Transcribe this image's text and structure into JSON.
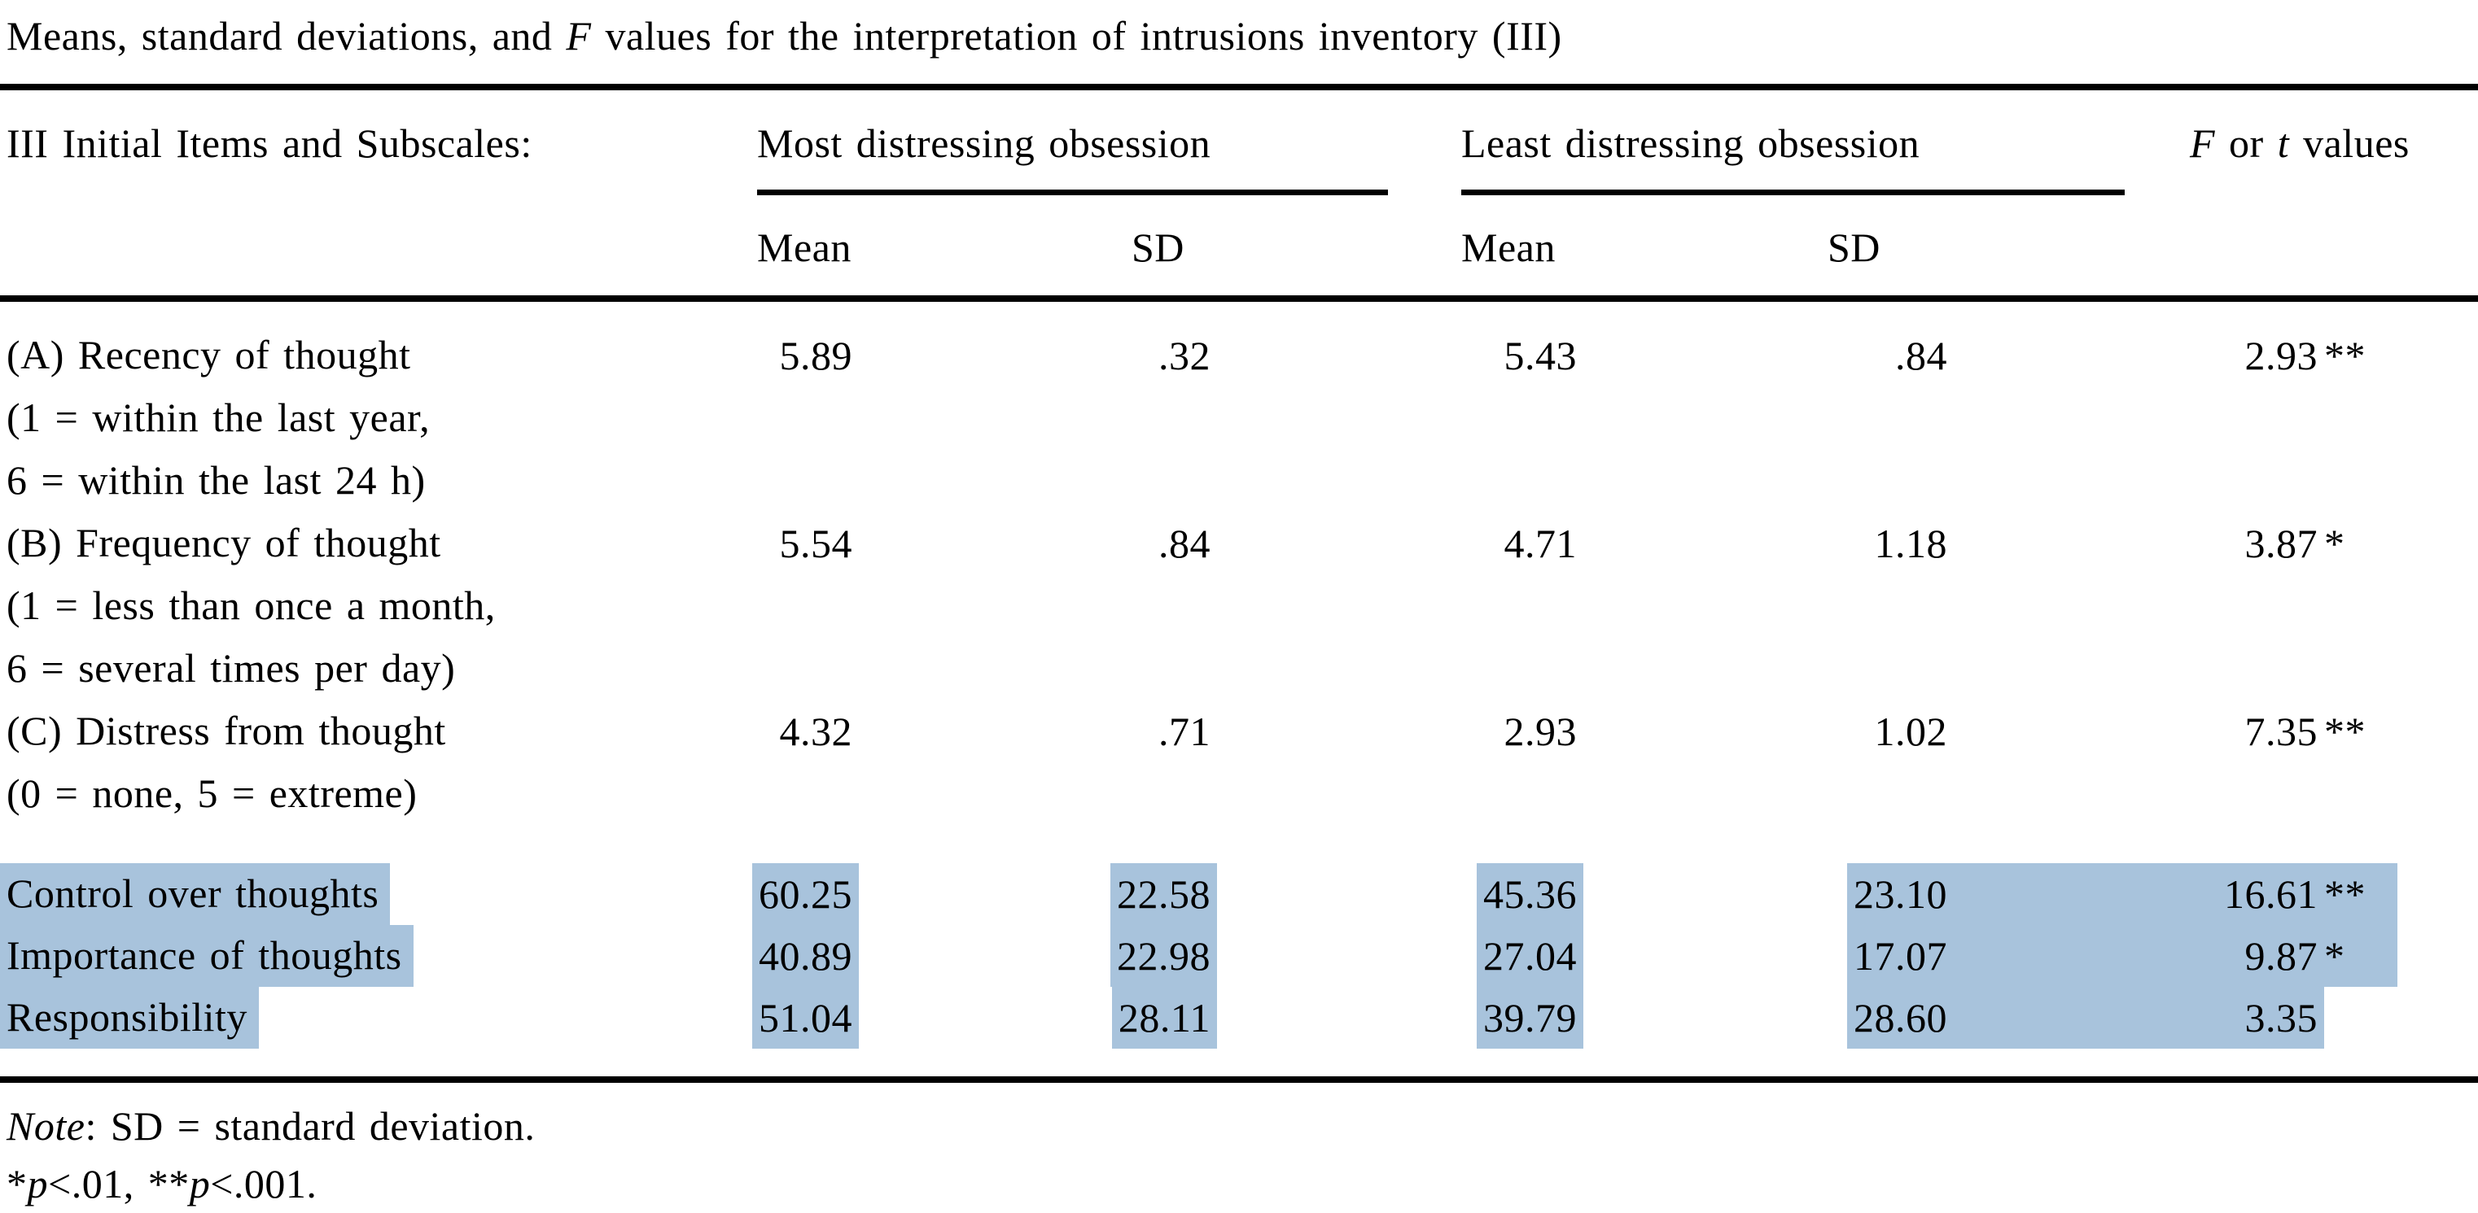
{
  "selection_highlight_color": "#a8c3dc",
  "title": {
    "part1": "Means, standard deviations, and ",
    "italic_f": "F",
    "part2": " values for the interpretation of intrusions inventory (III)"
  },
  "header": {
    "stub": "III Initial Items and Subscales:",
    "group1": "Most distressing obsession",
    "group2": "Least distressing obsession",
    "fcol": {
      "f": "F",
      "or": " or ",
      "t": "t",
      "values": " values"
    },
    "sub_mean1": "Mean",
    "sub_sd1": "SD",
    "sub_mean2": "Mean",
    "sub_sd2": "SD"
  },
  "table": {
    "rows": [
      {
        "label_lines": [
          "(A) Recency of thought",
          "(1 = within the last year,",
          "6 = within the last 24 h)"
        ],
        "mean1": "5.89",
        "sd1": ".32",
        "mean2": "5.43",
        "sd2": ".84",
        "f": "2.93",
        "stars": "**",
        "highlighted": false
      },
      {
        "label_lines": [
          "(B) Frequency of thought",
          "(1 = less than once a month,",
          "6 = several times per day)"
        ],
        "mean1": "5.54",
        "sd1": ".84",
        "mean2": "4.71",
        "sd2": "1.18",
        "f": "3.87",
        "stars": "*",
        "highlighted": false
      },
      {
        "label_lines": [
          "(C) Distress from thought",
          "(0 = none, 5 = extreme)"
        ],
        "mean1": "4.32",
        "sd1": ".71",
        "mean2": "2.93",
        "sd2": "1.02",
        "f": "7.35",
        "stars": "**",
        "highlighted": false
      },
      {
        "label_lines": [
          "Control over thoughts"
        ],
        "mean1": "60.25",
        "sd1": "22.58",
        "mean2": "45.36",
        "sd2": "23.10",
        "f": "16.61",
        "stars": "**",
        "highlighted": true
      },
      {
        "label_lines": [
          "Importance of thoughts"
        ],
        "mean1": "40.89",
        "sd1": "22.98",
        "mean2": "27.04",
        "sd2": "17.07",
        "f": "9.87",
        "stars": "*",
        "highlighted": true
      },
      {
        "label_lines": [
          "Responsibility"
        ],
        "mean1": "51.04",
        "sd1": "28.11",
        "mean2": "39.79",
        "sd2": "28.60",
        "f": "3.35",
        "stars": "",
        "highlighted": true
      }
    ]
  },
  "notes": {
    "note_word": "Note",
    "note_rest": ": SD = standard deviation.",
    "sig_star1": "*",
    "sig_p1": "p",
    "sig_rest1": "<.01, ",
    "sig_star2": "**",
    "sig_p2": "p",
    "sig_rest2": "<.001."
  },
  "chart_data": {
    "type": "table",
    "title": "Means, standard deviations, and F values for the interpretation of intrusions inventory (III)",
    "columns": [
      "III Initial Items and Subscales:",
      "Most distressing obsession Mean",
      "Most distressing obsession SD",
      "Least distressing obsession Mean",
      "Least distressing obsession SD",
      "F or t values"
    ],
    "rows": [
      [
        "(A) Recency of thought (1 = within the last year, 6 = within the last 24 h)",
        5.89,
        0.32,
        5.43,
        0.84,
        "2.93**"
      ],
      [
        "(B) Frequency of thought (1 = less than once a month, 6 = several times per day)",
        5.54,
        0.84,
        4.71,
        1.18,
        "3.87*"
      ],
      [
        "(C) Distress from thought (0 = none, 5 = extreme)",
        4.32,
        0.71,
        2.93,
        1.02,
        "7.35**"
      ],
      [
        "Control over thoughts",
        60.25,
        22.58,
        45.36,
        23.1,
        "16.61**"
      ],
      [
        "Importance of thoughts",
        40.89,
        22.98,
        27.04,
        17.07,
        "9.87*"
      ],
      [
        "Responsibility",
        51.04,
        28.11,
        39.79,
        28.6,
        "3.35"
      ]
    ],
    "footnotes": [
      "Note: SD = standard deviation.",
      "*p<.01, **p<.001."
    ]
  }
}
